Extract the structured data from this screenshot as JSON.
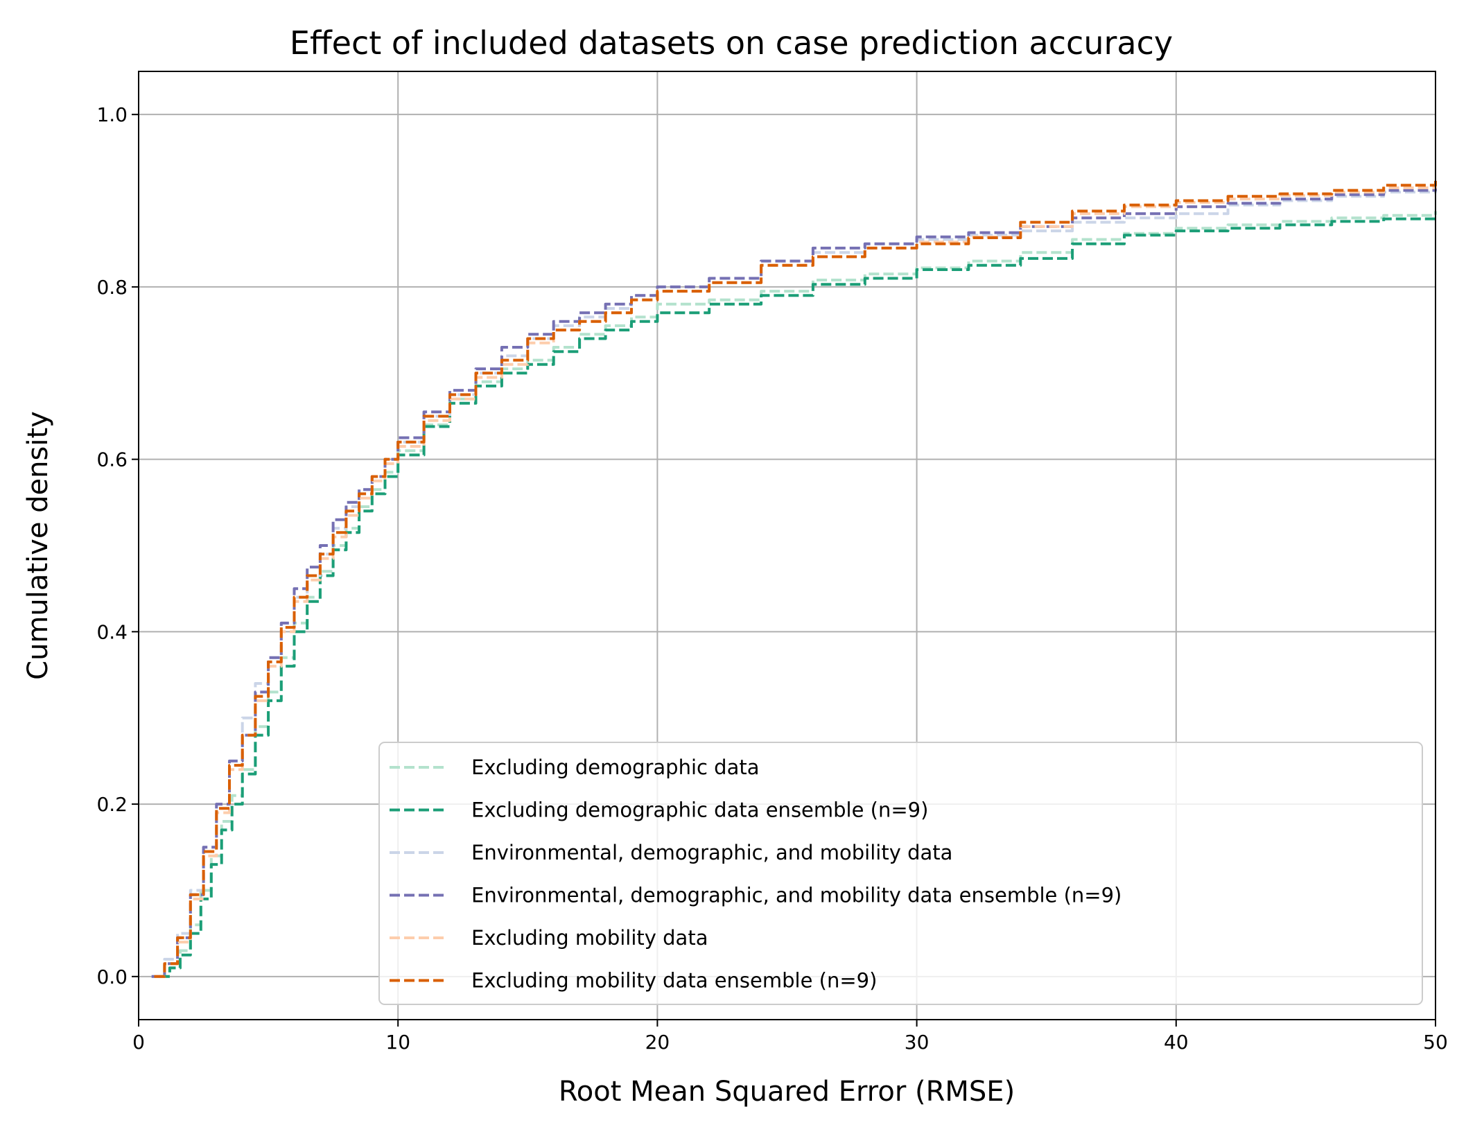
{
  "chart_data": {
    "type": "line",
    "title": "Effect of included datasets on case prediction accuracy",
    "xlabel": "Root Mean Squared Error (RMSE)",
    "ylabel": "Cumulative density",
    "xlim": [
      0,
      50
    ],
    "ylim": [
      -0.05,
      1.05
    ],
    "xticks": [
      0,
      10,
      20,
      30,
      40,
      50
    ],
    "xtick_labels": [
      "0",
      "10",
      "20",
      "30",
      "40",
      "50"
    ],
    "yticks": [
      0.0,
      0.2,
      0.4,
      0.6,
      0.8,
      1.0
    ],
    "ytick_labels": [
      "0.0",
      "0.2",
      "0.4",
      "0.6",
      "0.8",
      "1.0"
    ],
    "grid": true,
    "legend_position": "lower-right",
    "series": [
      {
        "name": "Excluding demographic data",
        "color": "#b3e2cd",
        "x": [
          0.8,
          1.2,
          1.6,
          2.0,
          2.4,
          2.8,
          3.2,
          3.6,
          4.0,
          4.5,
          5.0,
          5.5,
          6.0,
          6.5,
          7.0,
          7.5,
          8.0,
          8.5,
          9.0,
          9.5,
          10.0,
          11.0,
          12.0,
          13.0,
          14.0,
          15.0,
          16.0,
          17.0,
          18.0,
          19.0,
          20.0,
          22.0,
          24.0,
          26.0,
          28.0,
          30.0,
          32.0,
          34.0,
          36.0,
          38.0,
          40.0,
          42.0,
          44.0,
          46.0,
          48.0,
          50.0
        ],
        "y": [
          0.0,
          0.01,
          0.03,
          0.06,
          0.1,
          0.14,
          0.18,
          0.21,
          0.24,
          0.29,
          0.33,
          0.37,
          0.41,
          0.44,
          0.47,
          0.5,
          0.52,
          0.545,
          0.565,
          0.585,
          0.61,
          0.64,
          0.67,
          0.69,
          0.705,
          0.715,
          0.73,
          0.745,
          0.755,
          0.765,
          0.78,
          0.785,
          0.795,
          0.808,
          0.815,
          0.822,
          0.83,
          0.84,
          0.855,
          0.862,
          0.868,
          0.872,
          0.876,
          0.88,
          0.883,
          0.888
        ]
      },
      {
        "name": "Excluding demographic data ensemble (n=9)",
        "color": "#1b9e77",
        "x": [
          0.8,
          1.2,
          1.6,
          2.0,
          2.4,
          2.8,
          3.2,
          3.6,
          4.0,
          4.5,
          5.0,
          5.5,
          6.0,
          6.5,
          7.0,
          7.5,
          8.0,
          8.5,
          9.0,
          9.5,
          10.0,
          11.0,
          12.0,
          13.0,
          14.0,
          15.0,
          16.0,
          17.0,
          18.0,
          19.0,
          20.0,
          22.0,
          24.0,
          26.0,
          28.0,
          30.0,
          32.0,
          34.0,
          36.0,
          38.0,
          40.0,
          42.0,
          44.0,
          46.0,
          48.0,
          50.0
        ],
        "y": [
          0.0,
          0.01,
          0.025,
          0.05,
          0.09,
          0.13,
          0.17,
          0.2,
          0.235,
          0.28,
          0.32,
          0.36,
          0.4,
          0.435,
          0.465,
          0.495,
          0.515,
          0.54,
          0.56,
          0.58,
          0.605,
          0.638,
          0.665,
          0.685,
          0.7,
          0.71,
          0.725,
          0.74,
          0.75,
          0.76,
          0.77,
          0.78,
          0.79,
          0.803,
          0.81,
          0.82,
          0.825,
          0.833,
          0.85,
          0.86,
          0.865,
          0.868,
          0.872,
          0.876,
          0.879,
          0.883
        ]
      },
      {
        "name": "Environmental, demographic, and mobility data",
        "color": "#cbd5e8",
        "x": [
          0.5,
          1.0,
          1.5,
          2.0,
          2.5,
          3.0,
          3.5,
          4.0,
          4.5,
          5.0,
          5.5,
          6.0,
          6.5,
          7.0,
          7.5,
          8.0,
          8.5,
          9.0,
          9.5,
          10.0,
          11.0,
          12.0,
          13.0,
          14.0,
          15.0,
          16.0,
          17.0,
          18.0,
          19.0,
          20.0,
          22.0,
          24.0,
          26.0,
          28.0,
          30.0,
          32.0,
          34.0,
          36.0,
          38.0,
          40.0,
          42.0,
          44.0,
          46.0,
          48.0,
          50.0
        ],
        "y": [
          0.0,
          0.02,
          0.05,
          0.1,
          0.15,
          0.2,
          0.25,
          0.3,
          0.34,
          0.37,
          0.41,
          0.44,
          0.465,
          0.49,
          0.52,
          0.545,
          0.565,
          0.58,
          0.6,
          0.62,
          0.65,
          0.675,
          0.7,
          0.72,
          0.74,
          0.755,
          0.765,
          0.775,
          0.79,
          0.8,
          0.81,
          0.83,
          0.84,
          0.85,
          0.855,
          0.86,
          0.865,
          0.875,
          0.88,
          0.885,
          0.895,
          0.9,
          0.905,
          0.91,
          0.918
        ]
      },
      {
        "name": "Environmental, demographic, and mobility data ensemble (n=9)",
        "color": "#7570b3",
        "x": [
          0.5,
          1.0,
          1.5,
          2.0,
          2.5,
          3.0,
          3.5,
          4.0,
          4.5,
          5.0,
          5.5,
          6.0,
          6.5,
          7.0,
          7.5,
          8.0,
          8.5,
          9.0,
          9.5,
          10.0,
          11.0,
          12.0,
          13.0,
          14.0,
          15.0,
          16.0,
          17.0,
          18.0,
          19.0,
          20.0,
          22.0,
          24.0,
          26.0,
          28.0,
          30.0,
          32.0,
          34.0,
          36.0,
          38.0,
          40.0,
          42.0,
          44.0,
          46.0,
          48.0,
          50.0
        ],
        "y": [
          0.0,
          0.015,
          0.045,
          0.095,
          0.15,
          0.2,
          0.25,
          0.28,
          0.33,
          0.37,
          0.41,
          0.45,
          0.475,
          0.5,
          0.53,
          0.55,
          0.565,
          0.58,
          0.6,
          0.625,
          0.655,
          0.68,
          0.705,
          0.73,
          0.745,
          0.76,
          0.77,
          0.78,
          0.79,
          0.8,
          0.81,
          0.83,
          0.845,
          0.85,
          0.858,
          0.863,
          0.87,
          0.88,
          0.885,
          0.893,
          0.897,
          0.902,
          0.907,
          0.912,
          0.915
        ]
      },
      {
        "name": "Excluding mobility data",
        "color": "#fdcdac",
        "x": [
          0.6,
          1.0,
          1.5,
          2.0,
          2.5,
          3.0,
          3.5,
          4.0,
          4.5,
          5.0,
          5.5,
          6.0,
          6.5,
          7.0,
          7.5,
          8.0,
          8.5,
          9.0,
          9.5,
          10.0,
          11.0,
          12.0,
          13.0,
          14.0,
          15.0,
          16.0,
          17.0,
          18.0,
          19.0,
          20.0,
          22.0,
          24.0,
          26.0,
          28.0,
          30.0,
          32.0,
          34.0,
          36.0,
          38.0,
          40.0,
          42.0,
          44.0,
          46.0,
          48.0,
          50.0
        ],
        "y": [
          0.0,
          0.015,
          0.04,
          0.09,
          0.14,
          0.19,
          0.24,
          0.28,
          0.32,
          0.36,
          0.4,
          0.435,
          0.46,
          0.485,
          0.51,
          0.535,
          0.555,
          0.575,
          0.595,
          0.615,
          0.645,
          0.67,
          0.695,
          0.71,
          0.735,
          0.75,
          0.76,
          0.77,
          0.785,
          0.795,
          0.805,
          0.825,
          0.835,
          0.845,
          0.852,
          0.858,
          0.87,
          0.885,
          0.893,
          0.898,
          0.902,
          0.906,
          0.91,
          0.915,
          0.92
        ]
      },
      {
        "name": "Excluding mobility data ensemble (n=9)",
        "color": "#d95f02",
        "x": [
          0.6,
          1.0,
          1.5,
          2.0,
          2.5,
          3.0,
          3.5,
          4.0,
          4.5,
          5.0,
          5.5,
          6.0,
          6.5,
          7.0,
          7.5,
          8.0,
          8.5,
          9.0,
          9.5,
          10.0,
          11.0,
          12.0,
          13.0,
          14.0,
          15.0,
          16.0,
          17.0,
          18.0,
          19.0,
          20.0,
          22.0,
          24.0,
          26.0,
          28.0,
          30.0,
          32.0,
          34.0,
          36.0,
          38.0,
          40.0,
          42.0,
          44.0,
          46.0,
          48.0,
          50.0
        ],
        "y": [
          0.0,
          0.015,
          0.045,
          0.095,
          0.145,
          0.195,
          0.245,
          0.28,
          0.325,
          0.365,
          0.405,
          0.44,
          0.465,
          0.49,
          0.515,
          0.54,
          0.56,
          0.58,
          0.6,
          0.62,
          0.65,
          0.675,
          0.7,
          0.715,
          0.74,
          0.75,
          0.76,
          0.77,
          0.785,
          0.795,
          0.805,
          0.825,
          0.835,
          0.845,
          0.85,
          0.857,
          0.875,
          0.888,
          0.895,
          0.9,
          0.905,
          0.908,
          0.912,
          0.918,
          0.923
        ]
      }
    ]
  }
}
